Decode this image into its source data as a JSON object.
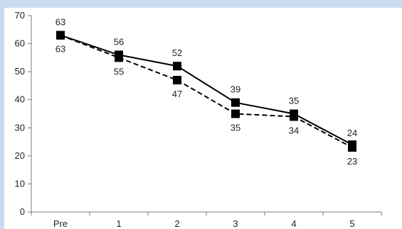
{
  "chart_data": {
    "type": "line",
    "categories": [
      "Pre",
      "1",
      "2",
      "3",
      "4",
      "5"
    ],
    "ylim": [
      0,
      70
    ],
    "yticks": [
      0,
      10,
      20,
      30,
      40,
      50,
      60,
      70
    ],
    "grid": false,
    "legend": "none",
    "series": [
      {
        "style": "solid",
        "color": "#000000",
        "values": [
          63,
          56,
          52,
          39,
          35,
          24
        ]
      },
      {
        "style": "dashed",
        "color": "#000000",
        "values": [
          63,
          55,
          47,
          35,
          34,
          23
        ]
      }
    ]
  }
}
